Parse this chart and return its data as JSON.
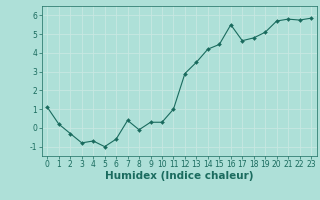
{
  "x": [
    0,
    1,
    2,
    3,
    4,
    5,
    6,
    7,
    8,
    9,
    10,
    11,
    12,
    13,
    14,
    15,
    16,
    17,
    18,
    19,
    20,
    21,
    22,
    23
  ],
  "y": [
    1.1,
    0.2,
    -0.3,
    -0.8,
    -0.7,
    -1.0,
    -0.6,
    0.4,
    -0.1,
    0.3,
    0.3,
    1.0,
    2.9,
    3.5,
    4.2,
    4.45,
    5.5,
    4.65,
    4.8,
    5.1,
    5.7,
    5.8,
    5.75,
    5.85
  ],
  "line_color": "#1a6b5e",
  "marker": "D",
  "marker_size": 2.0,
  "bg_color": "#aee0d8",
  "grid_color": "#c8e8e2",
  "xlabel": "Humidex (Indice chaleur)",
  "ylim": [
    -1.5,
    6.5
  ],
  "xlim": [
    -0.5,
    23.5
  ],
  "yticks": [
    -1,
    0,
    1,
    2,
    3,
    4,
    5,
    6
  ],
  "xticks": [
    0,
    1,
    2,
    3,
    4,
    5,
    6,
    7,
    8,
    9,
    10,
    11,
    12,
    13,
    14,
    15,
    16,
    17,
    18,
    19,
    20,
    21,
    22,
    23
  ],
  "tick_color": "#1a6b5e",
  "tick_fontsize": 5.5,
  "xlabel_fontsize": 7.5
}
